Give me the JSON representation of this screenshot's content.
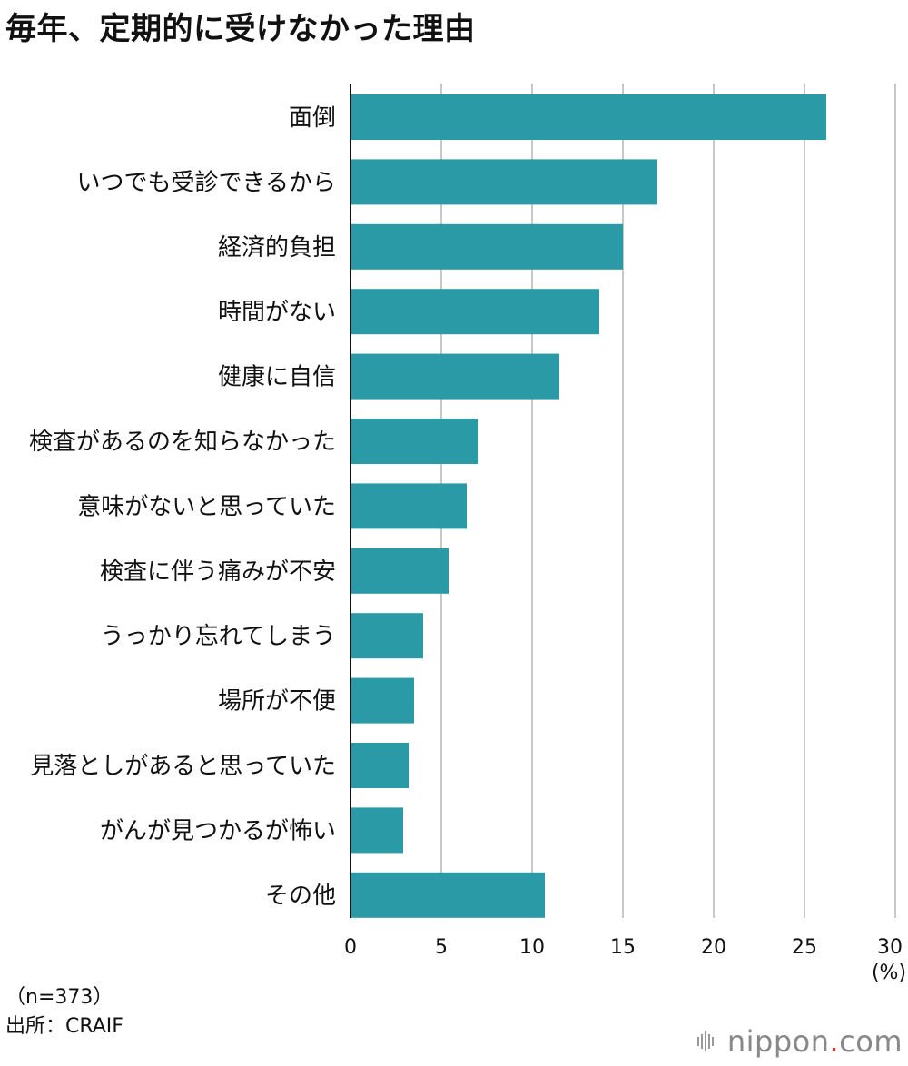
{
  "title": "毎年、定期的に受けなかった理由",
  "note": "（n=373）",
  "source": "出所：CRAIF",
  "logo": {
    "name": "nippon",
    "dot": ".",
    "suffix": "com",
    "dot_color": "#d0342c"
  },
  "colors": {
    "bar": "#2a9ba6",
    "grid": "#c8c8c8",
    "axis": "#111111"
  },
  "chart_data": {
    "type": "bar",
    "orientation": "horizontal",
    "categories": [
      "面倒",
      "いつでも受診できるから",
      "経済的負担",
      "時間がない",
      "健康に自信",
      "検査があるのを知らなかった",
      "意味がないと思っていた",
      "検査に伴う痛みが不安",
      "うっかり忘れてしまう",
      "場所が不便",
      "見落としがあると思っていた",
      "がんが見つかるが怖い",
      "その他"
    ],
    "values": [
      26.2,
      16.9,
      15.0,
      13.7,
      11.5,
      7.0,
      6.4,
      5.4,
      4.0,
      3.5,
      3.2,
      2.9,
      10.7
    ],
    "xlim": [
      0,
      30
    ],
    "xticks": [
      "0",
      "5",
      "10",
      "15",
      "20",
      "25",
      "30"
    ],
    "unit": "(%)",
    "grid": true
  }
}
